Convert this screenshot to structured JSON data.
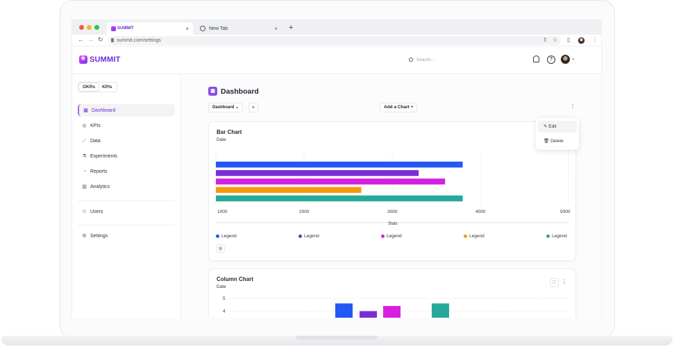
{
  "browser": {
    "tabs": [
      {
        "label": "SUMMIT",
        "active": true
      },
      {
        "label": "New Tab",
        "active": false
      }
    ],
    "url": "summit.com/settings",
    "close_symbol": "×",
    "new_tab_symbol": "+"
  },
  "header": {
    "brand": "SUMMIT",
    "search_placeholder": "Search..."
  },
  "sidebar": {
    "segments": [
      {
        "label": "OKRs"
      },
      {
        "label": "KPIs"
      }
    ],
    "items": [
      {
        "label": "Dashboard",
        "icon": "grid-icon",
        "active": true
      },
      {
        "label": "KPIs",
        "icon": "target-icon"
      },
      {
        "label": "Data",
        "icon": "line-chart-icon"
      },
      {
        "label": "Experiments",
        "icon": "flask-icon"
      },
      {
        "label": "Reports",
        "icon": "pie-icon"
      },
      {
        "label": "Analytics",
        "icon": "bar-icon"
      }
    ],
    "users_label": "Users",
    "settings_label": "Settings"
  },
  "main": {
    "title": "Dashboard",
    "dropdown_label": "Dashboard",
    "add_chart_label": "Add a Chart",
    "menu": {
      "edit": "Edit",
      "delete": "Delete"
    }
  },
  "colors": {
    "accent": "#6b2bd9",
    "series": [
      "#2458f2",
      "#7a2fd6",
      "#d61fe0",
      "#f59a0a",
      "#27a99a"
    ]
  },
  "chart_data": [
    {
      "type": "bar",
      "orientation": "horizontal",
      "title": "Bar Chart",
      "subtitle": "Date",
      "xlabel": "Stats",
      "xlim": [
        1000,
        5000
      ],
      "x_ticks": [
        "1000",
        "2000",
        "3000",
        "4000",
        "5000"
      ],
      "values": [
        3800,
        3300,
        3600,
        2650,
        3800
      ],
      "legend": [
        "Legend",
        "Legend",
        "Legend",
        "Legend",
        "Legend"
      ],
      "legend_placement": "bottom",
      "grid": true
    },
    {
      "type": "bar",
      "orientation": "vertical",
      "title": "Column Chart",
      "subtitle": "Date",
      "ylim": [
        0,
        5
      ],
      "y_ticks": [
        "5",
        "4"
      ],
      "values": [
        4.6,
        4,
        4.4,
        4.6
      ],
      "grid": true
    }
  ]
}
